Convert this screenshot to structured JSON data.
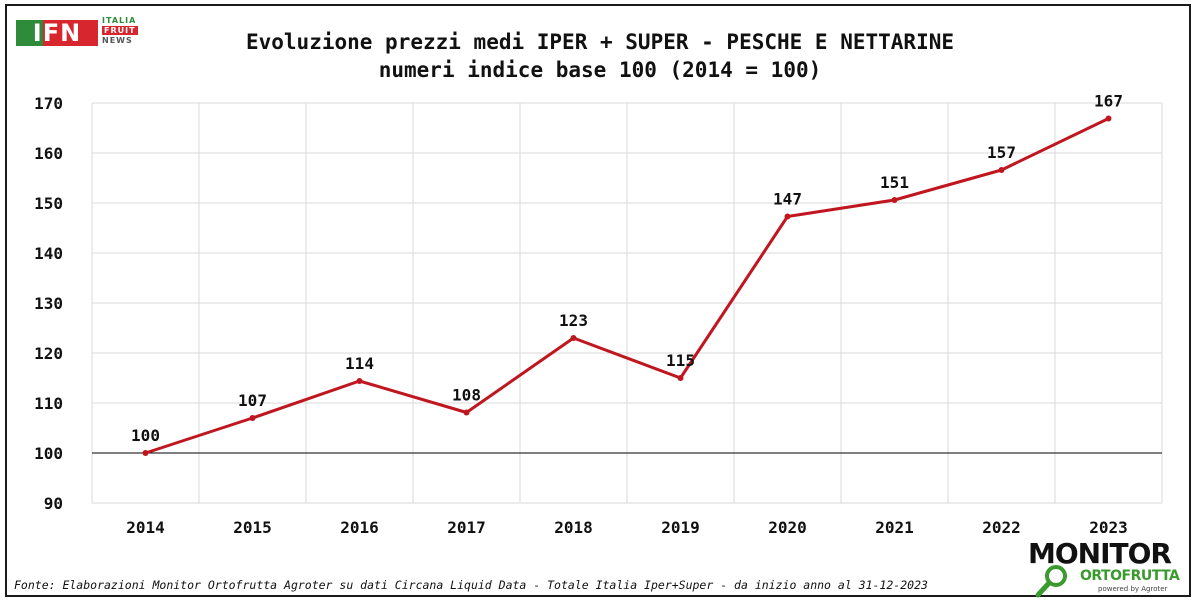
{
  "logo": {
    "mark": "IFN",
    "line1": "ITALIA",
    "line2": "FRUIT",
    "line3": "NEWS"
  },
  "monitor_logo": {
    "line1": "MONITOR",
    "line2": "ORTOFRUTTA",
    "sub": "powered by Agroter"
  },
  "source_note": "Fonte: Elaborazioni Monitor Ortofrutta Agroter su dati Circana Liquid Data - Totale Italia Iper+Super -  da inizio anno al 31-12-2023",
  "chart_data": {
    "type": "line",
    "title_line1": "Evoluzione prezzi medi IPER + SUPER - PESCHE E NETTARINE",
    "title_line2": "numeri indice base 100 (2014 = 100)",
    "categories": [
      "2014",
      "2015",
      "2016",
      "2017",
      "2018",
      "2019",
      "2020",
      "2021",
      "2022",
      "2023"
    ],
    "values": [
      100,
      107,
      114.4,
      108.1,
      123,
      115,
      147.3,
      150.6,
      156.6,
      166.9
    ],
    "data_labels": [
      "100",
      "107",
      "114",
      "108",
      "123",
      "115",
      "147",
      "151",
      "157",
      "167"
    ],
    "ylim": [
      90,
      170
    ],
    "yticks": [
      90,
      100,
      110,
      120,
      130,
      140,
      150,
      160,
      170
    ],
    "baseline": 100,
    "grid": true,
    "line_color": "#c0161f",
    "xlabel": "",
    "ylabel": ""
  }
}
